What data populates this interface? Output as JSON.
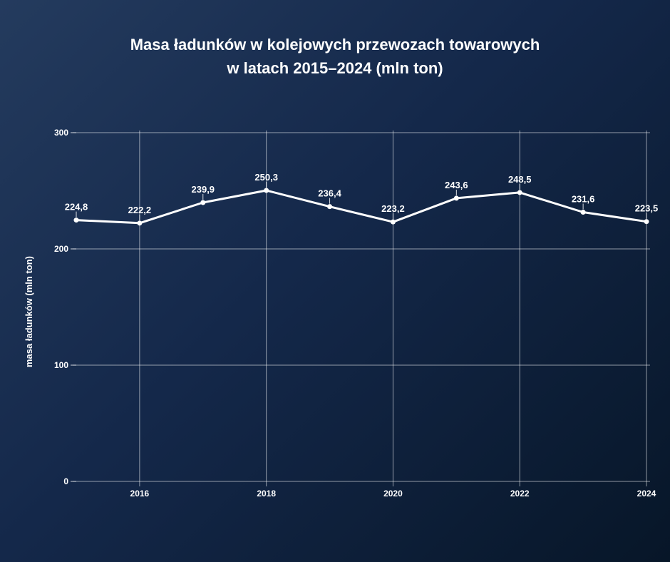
{
  "chart_data": {
    "type": "line",
    "title_lines": [
      "Masa ładunków w kolejowych przewozach towarowych",
      "w latach 2015–2024 (mln ton)"
    ],
    "xlabel": "",
    "ylabel": "masa ładunków (mln ton)",
    "x": [
      2015,
      2016,
      2017,
      2018,
      2019,
      2020,
      2021,
      2022,
      2023,
      2024
    ],
    "values": [
      224.8,
      222.2,
      239.9,
      250.3,
      236.4,
      223.2,
      243.6,
      248.5,
      231.6,
      223.5
    ],
    "data_labels": [
      "224,8",
      "222,2",
      "239,9",
      "250,3",
      "236,4",
      "223,2",
      "243,6",
      "248,5",
      "231,6",
      "223,5"
    ],
    "x_ticks": [
      2016,
      2018,
      2020,
      2022,
      2024
    ],
    "y_ticks": [
      0,
      100,
      200,
      300
    ],
    "xlim": [
      2015,
      2024
    ],
    "ylim": [
      0,
      300
    ],
    "grid": true,
    "line_color": "#ffffff"
  }
}
